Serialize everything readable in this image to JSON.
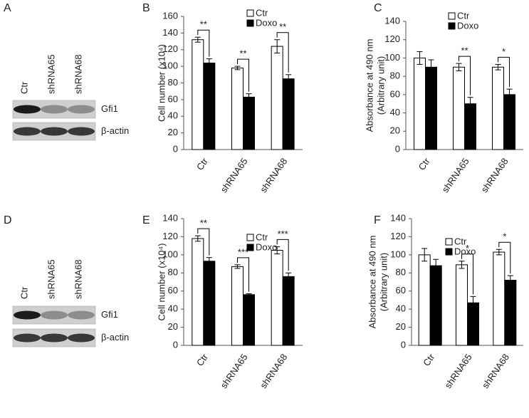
{
  "blots": [
    {
      "panel": "A",
      "lanes": [
        "Ctr",
        "shRNA65",
        "shRNA68"
      ],
      "bands": [
        "Gfi1",
        "β-actin"
      ]
    },
    {
      "panel": "D",
      "lanes": [
        "Ctr",
        "shRNA65",
        "shRNA68"
      ],
      "bands": [
        "Gfi1",
        "β-actin"
      ]
    }
  ],
  "chart_data": [
    {
      "type": "bar",
      "panel": "B",
      "ylabel": [
        "Cell number (x10⁴)"
      ],
      "categories": [
        "Ctr",
        "shRNA65",
        "shRNA68"
      ],
      "series": [
        {
          "name": "Ctr",
          "color": "#ffffff",
          "edgecolor": "#000000",
          "values": [
            132,
            98,
            124
          ],
          "errors": [
            3,
            2,
            8
          ]
        },
        {
          "name": "Doxo",
          "color": "#000000",
          "edgecolor": "#000000",
          "values": [
            104,
            63,
            85
          ],
          "errors": [
            5,
            4,
            5
          ]
        }
      ],
      "significance": [
        "**",
        "**",
        "**"
      ],
      "ylim": [
        0,
        160
      ],
      "yticks": [
        0,
        20,
        40,
        60,
        80,
        100,
        120,
        140,
        160
      ],
      "grid": false,
      "legend": "upper right"
    },
    {
      "type": "bar",
      "panel": "C",
      "ylabel": [
        "Absorbance at 490 nm",
        "(Arbitrary unit)"
      ],
      "categories": [
        "Ctr",
        "shRNA65",
        "shRNA68"
      ],
      "series": [
        {
          "name": "Ctr",
          "color": "#ffffff",
          "edgecolor": "#000000",
          "values": [
            100,
            90,
            90
          ],
          "errors": [
            7,
            4,
            3
          ]
        },
        {
          "name": "Doxo",
          "color": "#000000",
          "edgecolor": "#000000",
          "values": [
            90,
            50,
            60
          ],
          "errors": [
            8,
            7,
            6
          ]
        }
      ],
      "significance": [
        null,
        "**",
        "*"
      ],
      "ylim": [
        0,
        140
      ],
      "yticks": [
        0,
        20,
        40,
        60,
        80,
        100,
        120,
        140
      ],
      "grid": false,
      "legend": "upper right"
    },
    {
      "type": "bar",
      "panel": "E",
      "ylabel": [
        "Cell number (x10⁴)"
      ],
      "categories": [
        "Ctr",
        "shRNA65",
        "shRNA68"
      ],
      "series": [
        {
          "name": "Ctr",
          "color": "#ffffff",
          "edgecolor": "#000000",
          "values": [
            118,
            87,
            105
          ],
          "errors": [
            3,
            2,
            4
          ]
        },
        {
          "name": "Doxo",
          "color": "#000000",
          "edgecolor": "#000000",
          "values": [
            93,
            56,
            76
          ],
          "errors": [
            4,
            1,
            4
          ]
        }
      ],
      "significance": [
        "**",
        "***",
        "***"
      ],
      "ylim": [
        0,
        140
      ],
      "yticks": [
        0,
        20,
        40,
        60,
        80,
        100,
        120,
        140
      ],
      "grid": false,
      "legend": "upper right"
    },
    {
      "type": "bar",
      "panel": "F",
      "ylabel": [
        "Absorbance at 490 nm",
        "(Arbitrary unit)"
      ],
      "categories": [
        "Ctr",
        "shRNA65",
        "shRNA68"
      ],
      "series": [
        {
          "name": "Ctr",
          "color": "#ffffff",
          "edgecolor": "#000000",
          "values": [
            100,
            89,
            103
          ],
          "errors": [
            7,
            4,
            3
          ]
        },
        {
          "name": "Doxo",
          "color": "#000000",
          "edgecolor": "#000000",
          "values": [
            88,
            47,
            72
          ],
          "errors": [
            7,
            7,
            5
          ]
        }
      ],
      "significance": [
        null,
        "*",
        "*"
      ],
      "ylim": [
        0,
        140
      ],
      "yticks": [
        0,
        20,
        40,
        60,
        80,
        100,
        120,
        140
      ],
      "grid": false,
      "legend": "upper right"
    }
  ]
}
